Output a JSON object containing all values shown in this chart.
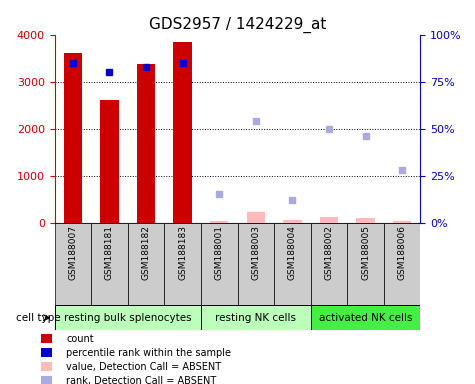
{
  "title": "GDS2957 / 1424229_at",
  "samples": [
    "GSM188007",
    "GSM188181",
    "GSM188182",
    "GSM188183",
    "GSM188001",
    "GSM188003",
    "GSM188004",
    "GSM188002",
    "GSM188005",
    "GSM188006"
  ],
  "cell_types": [
    {
      "label": "resting bulk splenocytes",
      "start": 0,
      "end": 4,
      "color": "#bbffbb"
    },
    {
      "label": "resting NK cells",
      "start": 4,
      "end": 7,
      "color": "#bbffbb"
    },
    {
      "label": "activated NK cells",
      "start": 7,
      "end": 10,
      "color": "#44ee44"
    }
  ],
  "count_present": [
    3600,
    2600,
    3380,
    3850,
    null,
    null,
    null,
    null,
    null,
    null
  ],
  "count_absent": [
    null,
    null,
    null,
    null,
    30,
    220,
    60,
    130,
    90,
    30
  ],
  "rank_present": [
    85,
    80,
    83,
    85,
    null,
    null,
    null,
    null,
    null,
    null
  ],
  "rank_absent": [
    null,
    null,
    null,
    null,
    15,
    54,
    12,
    50,
    46,
    28
  ],
  "ylim_left": [
    0,
    4000
  ],
  "ylim_right": [
    0,
    100
  ],
  "bar_width": 0.5,
  "bar_color_present": "#cc0000",
  "bar_color_absent": "#ffbbbb",
  "dot_color_present": "#0000cc",
  "dot_color_absent": "#aaaadd",
  "bg_plot": "#ffffff",
  "bg_samples": "#cccccc",
  "left_tick_color": "#cc0000",
  "right_tick_color": "#0000cc",
  "title_fontsize": 11,
  "tick_fontsize": 7,
  "label_fontsize": 8
}
